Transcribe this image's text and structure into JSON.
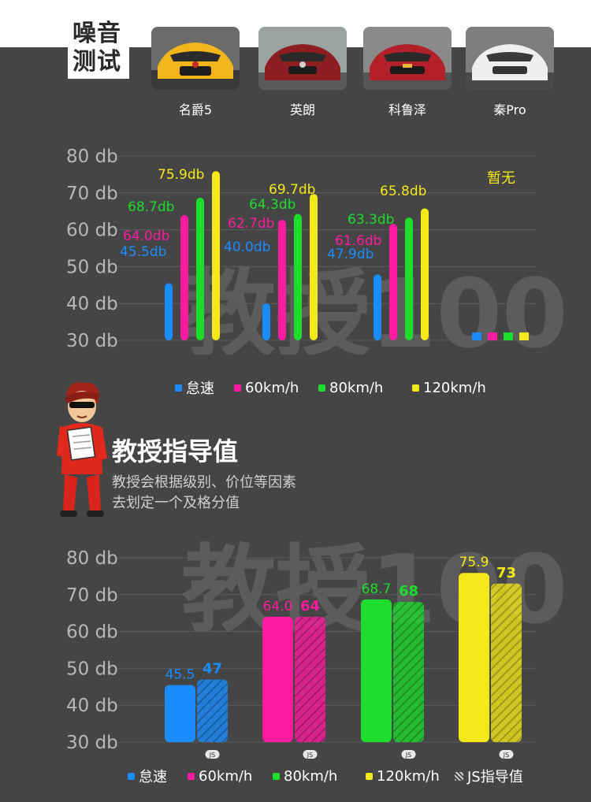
{
  "header": {
    "title_line1": "噪音",
    "title_line2": "测试"
  },
  "cars": [
    {
      "name": "名爵5"
    },
    {
      "name": "英朗"
    },
    {
      "name": "科鲁泽"
    },
    {
      "name": "秦Pro"
    }
  ],
  "colors": {
    "idle": "#1a8cff",
    "kmh60": "#ff1aa0",
    "kmh80": "#1cdc2c",
    "kmh120": "#f5e818",
    "background": "#454545"
  },
  "chart_data": [
    {
      "type": "bar",
      "title": "",
      "ylabel": "",
      "y_ticks": [
        "80 db",
        "70 db",
        "60 db",
        "50 db",
        "40 db",
        "30 db"
      ],
      "ylim": [
        30,
        80
      ],
      "categories": [
        "名爵5",
        "英朗",
        "科鲁泽",
        "秦Pro"
      ],
      "series": [
        {
          "name": "怠速",
          "values": [
            45.5,
            40.0,
            47.9,
            null
          ],
          "labels": [
            "45.5db",
            "40.0db",
            "47.9db",
            ""
          ]
        },
        {
          "name": "60km/h",
          "values": [
            64.0,
            62.7,
            61.6,
            null
          ],
          "labels": [
            "64.0db",
            "62.7db",
            "61.6db",
            ""
          ]
        },
        {
          "name": "80km/h",
          "values": [
            68.7,
            64.3,
            63.3,
            null
          ],
          "labels": [
            "68.7db",
            "64.3db",
            "63.3db",
            ""
          ]
        },
        {
          "name": "120km/h",
          "values": [
            75.9,
            69.7,
            65.8,
            null
          ],
          "labels": [
            "75.9db",
            "69.7db",
            "65.8db",
            ""
          ]
        }
      ],
      "annotations": [
        {
          "category": "秦Pro",
          "text": "暂无"
        }
      ],
      "legend": "bottom"
    },
    {
      "type": "bar",
      "title": "",
      "ylabel": "",
      "y_ticks": [
        "80 db",
        "70 db",
        "60 db",
        "50 db",
        "40 db",
        "30 db"
      ],
      "ylim": [
        30,
        80
      ],
      "categories": [
        "怠速",
        "60km/h",
        "80km/h",
        "120km/h"
      ],
      "measured": [
        45.5,
        64.0,
        68.7,
        75.9
      ],
      "measured_labels": [
        "45.5",
        "64.0",
        "68.7",
        "75.9"
      ],
      "js_values": [
        47,
        64,
        68,
        73
      ],
      "js_labels": [
        "47",
        "64",
        "68",
        "73"
      ],
      "js_badge": "JS",
      "legend": "bottom"
    }
  ],
  "legend1": [
    "怠速",
    "60km/h",
    "80km/h",
    "120km/h"
  ],
  "legend2": [
    "怠速",
    "60km/h",
    "80km/h",
    "120km/h",
    "JS指导值"
  ],
  "guide": {
    "title": "教授指导值",
    "desc_line1": "教授会根据级别、价位等因素",
    "desc_line2": "去划定一个及格分值"
  },
  "watermark": "教授100"
}
